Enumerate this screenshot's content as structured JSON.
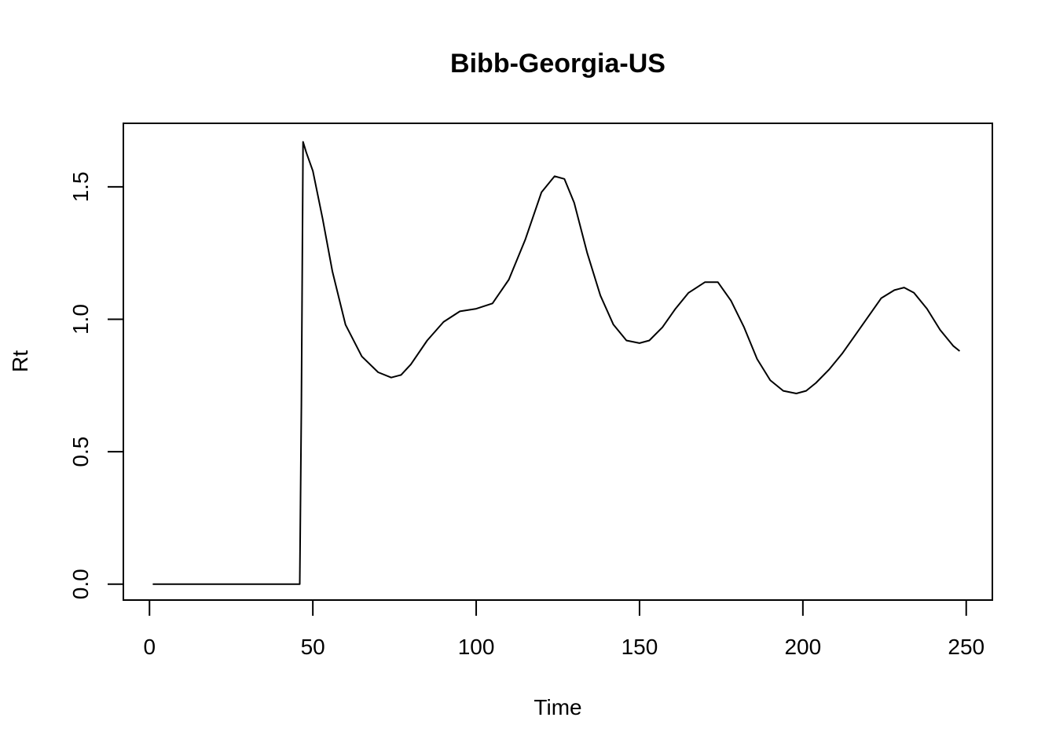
{
  "chart_data": {
    "type": "line",
    "title": "Bibb-Georgia-US",
    "xlabel": "Time",
    "ylabel": "Rt",
    "xlim": [
      -8,
      258
    ],
    "ylim": [
      -0.06,
      1.74
    ],
    "xticks": [
      0,
      50,
      100,
      150,
      200,
      250
    ],
    "yticks": [
      0.0,
      0.5,
      1.0,
      1.5
    ],
    "xtick_labels": [
      "0",
      "50",
      "100",
      "150",
      "200",
      "250"
    ],
    "ytick_labels": [
      "0.0",
      "0.5",
      "1.0",
      "1.5"
    ],
    "grid": false,
    "legend": "none",
    "series": [
      {
        "color": "#000000",
        "x": [
          1,
          10,
          20,
          30,
          40,
          46,
          46.5,
          47,
          48,
          50,
          53,
          56,
          60,
          65,
          70,
          74,
          77,
          80,
          85,
          90,
          95,
          100,
          105,
          110,
          115,
          120,
          124,
          127,
          130,
          134,
          138,
          142,
          146,
          150,
          153,
          157,
          161,
          165,
          170,
          174,
          178,
          182,
          186,
          190,
          194,
          198,
          201,
          204,
          208,
          212,
          216,
          220,
          224,
          228,
          231,
          234,
          238,
          242,
          246,
          248
        ],
        "y": [
          0,
          0,
          0,
          0,
          0,
          0,
          0.68,
          1.67,
          1.63,
          1.56,
          1.38,
          1.18,
          0.98,
          0.86,
          0.8,
          0.78,
          0.79,
          0.83,
          0.92,
          0.99,
          1.03,
          1.04,
          1.06,
          1.15,
          1.3,
          1.48,
          1.54,
          1.53,
          1.44,
          1.25,
          1.09,
          0.98,
          0.92,
          0.91,
          0.92,
          0.97,
          1.04,
          1.1,
          1.14,
          1.14,
          1.07,
          0.97,
          0.85,
          0.77,
          0.73,
          0.72,
          0.73,
          0.76,
          0.81,
          0.87,
          0.94,
          1.01,
          1.08,
          1.11,
          1.12,
          1.1,
          1.04,
          0.96,
          0.9,
          0.88
        ]
      }
    ]
  }
}
